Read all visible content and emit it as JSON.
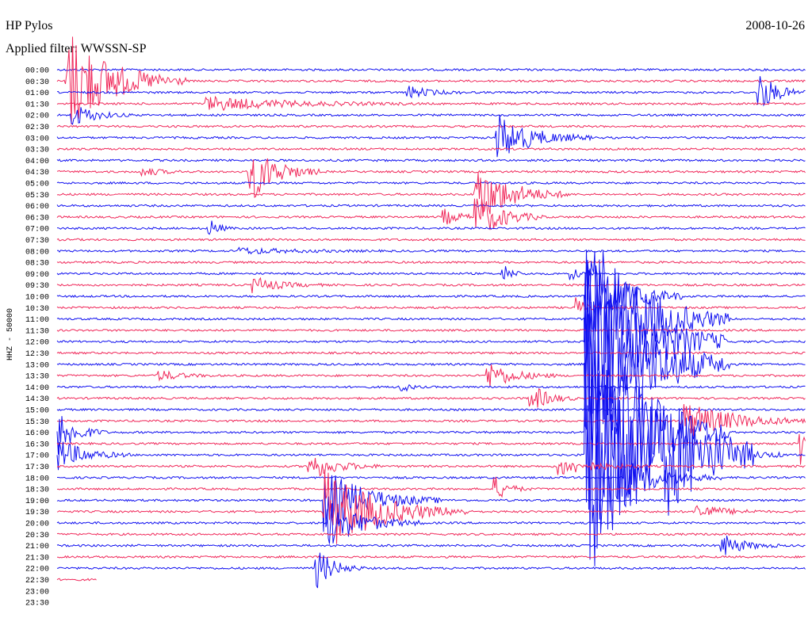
{
  "header": {
    "station": "HP Pylos",
    "filter": "Applied filter: WWSSN-SP",
    "date": "2008-10-26"
  },
  "axis": {
    "label": "HHZ - 50000",
    "times": [
      "00:00",
      "00:30",
      "01:00",
      "01:30",
      "02:00",
      "02:30",
      "03:00",
      "03:30",
      "04:00",
      "04:30",
      "05:00",
      "05:30",
      "06:00",
      "06:30",
      "07:00",
      "07:30",
      "08:00",
      "08:30",
      "09:00",
      "09:30",
      "10:00",
      "10:30",
      "11:00",
      "11:30",
      "12:00",
      "12:30",
      "13:00",
      "13:30",
      "14:00",
      "14:30",
      "15:00",
      "15:30",
      "16:00",
      "16:30",
      "17:00",
      "17:30",
      "18:00",
      "18:30",
      "19:00",
      "19:30",
      "20:00",
      "20:30",
      "21:00",
      "21:30",
      "22:00",
      "22:30",
      "23:00",
      "23:30"
    ]
  }
}
